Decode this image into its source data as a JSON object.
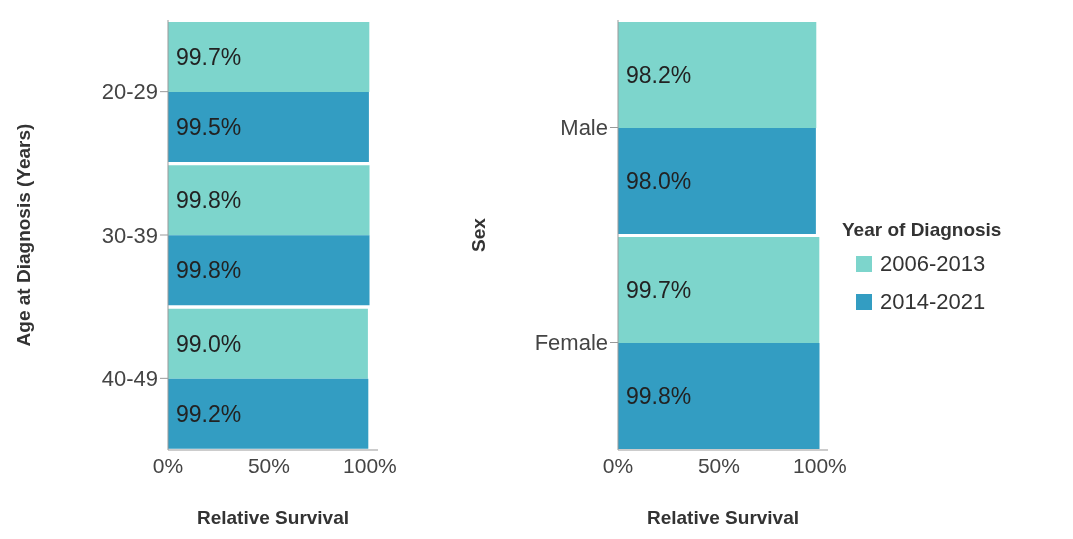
{
  "chart_data": [
    {
      "type": "bar",
      "orientation": "horizontal",
      "ylabel": "Age at Diagnosis (Years)",
      "xlabel": "Relative Survival",
      "categories": [
        "20-29",
        "30-39",
        "40-49"
      ],
      "series": [
        {
          "color": "#7dd5cc",
          "values": [
            99.7,
            99.8,
            99.0
          ],
          "value_labels": [
            "99.7%",
            "99.8%",
            "99.0%"
          ]
        },
        {
          "color": "#339dc2",
          "values": [
            99.5,
            99.8,
            99.2
          ],
          "value_labels": [
            "99.5%",
            "99.8%",
            "99.2%"
          ]
        }
      ],
      "xlim": [
        0,
        104
      ],
      "xticks": [
        {
          "value": 0,
          "label": "0%"
        },
        {
          "value": 50,
          "label": "50%"
        },
        {
          "value": 100,
          "label": "100%"
        }
      ],
      "legend": false
    },
    {
      "type": "bar",
      "orientation": "horizontal",
      "ylabel": "Sex",
      "xlabel": "Relative Survival",
      "legend_title": "Year of Diagnosis",
      "categories": [
        "Male",
        "Female"
      ],
      "series": [
        {
          "name": "2006-2013",
          "color": "#7dd5cc",
          "values": [
            98.2,
            99.7
          ],
          "value_labels": [
            "98.2%",
            "99.7%"
          ]
        },
        {
          "name": "2014-2021",
          "color": "#339dc2",
          "values": [
            98.0,
            99.8
          ],
          "value_labels": [
            "98.0%",
            "99.8%"
          ]
        }
      ],
      "xlim": [
        0,
        104
      ],
      "xticks": [
        {
          "value": 0,
          "label": "0%"
        },
        {
          "value": 50,
          "label": "50%"
        },
        {
          "value": 100,
          "label": "100%"
        }
      ],
      "legend": "right"
    }
  ]
}
